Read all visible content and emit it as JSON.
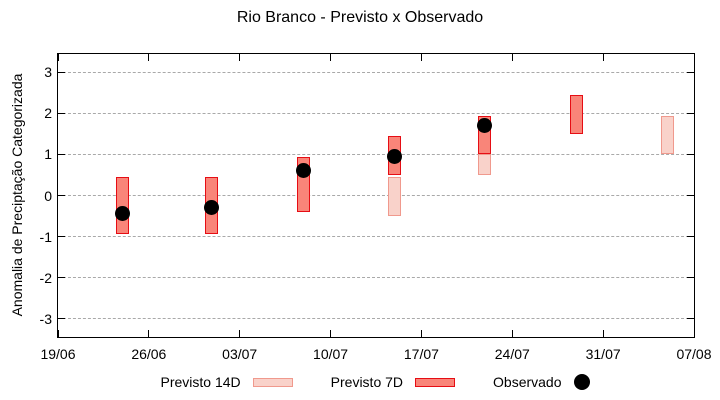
{
  "chart_data": {
    "type": "bar",
    "subtype": "floating-range-bars-with-observed-points",
    "title": "Rio Branco - Previsto x Observado",
    "ylabel": "Anomalia de Preciptação Categorizada",
    "xlabel": "",
    "ylim": [
      -3.45,
      3.45
    ],
    "yticks": [
      3,
      2,
      1,
      0,
      -1,
      -2,
      -3
    ],
    "xtick_labels": [
      "19/06",
      "26/06",
      "03/07",
      "10/07",
      "17/07",
      "24/07",
      "31/07",
      "07/08"
    ],
    "grid": "horizontal-dashed-lines-at-integer-yticks",
    "legend_position": "below-plot",
    "colors": {
      "previsto_14d_fill": "#f9d2ca",
      "previsto_14d_border": "#f0998d",
      "previsto_7d_fill": "#f98579",
      "previsto_7d_border": "#e60d14",
      "observado": "#000000",
      "grid": "#a9a9a9",
      "frame": "#000000"
    },
    "series": [
      {
        "name": "Previsto 14D",
        "kind": "range-bar",
        "bars": [
          {
            "x_frac": 0.529,
            "low": -0.5,
            "high": 0.45
          },
          {
            "x_frac": 0.671,
            "low": 0.5,
            "high": 1.0
          },
          {
            "x_frac": 0.958,
            "low": 1.0,
            "high": 1.95
          }
        ]
      },
      {
        "name": "Previsto 7D",
        "kind": "range-bar",
        "bars": [
          {
            "x_frac": 0.102,
            "low": -0.95,
            "high": 0.45
          },
          {
            "x_frac": 0.242,
            "low": -0.95,
            "high": 0.45
          },
          {
            "x_frac": 0.386,
            "low": -0.4,
            "high": 0.95
          },
          {
            "x_frac": 0.529,
            "low": 0.5,
            "high": 1.45
          },
          {
            "x_frac": 0.671,
            "low": 1.0,
            "high": 1.95
          },
          {
            "x_frac": 0.815,
            "low": 1.5,
            "high": 2.45
          }
        ]
      },
      {
        "name": "Observado",
        "kind": "point",
        "points": [
          {
            "x_frac": 0.102,
            "y": -0.45
          },
          {
            "x_frac": 0.242,
            "y": -0.3
          },
          {
            "x_frac": 0.386,
            "y": 0.6
          },
          {
            "x_frac": 0.529,
            "y": 0.95
          },
          {
            "x_frac": 0.671,
            "y": 1.7
          }
        ]
      }
    ]
  }
}
